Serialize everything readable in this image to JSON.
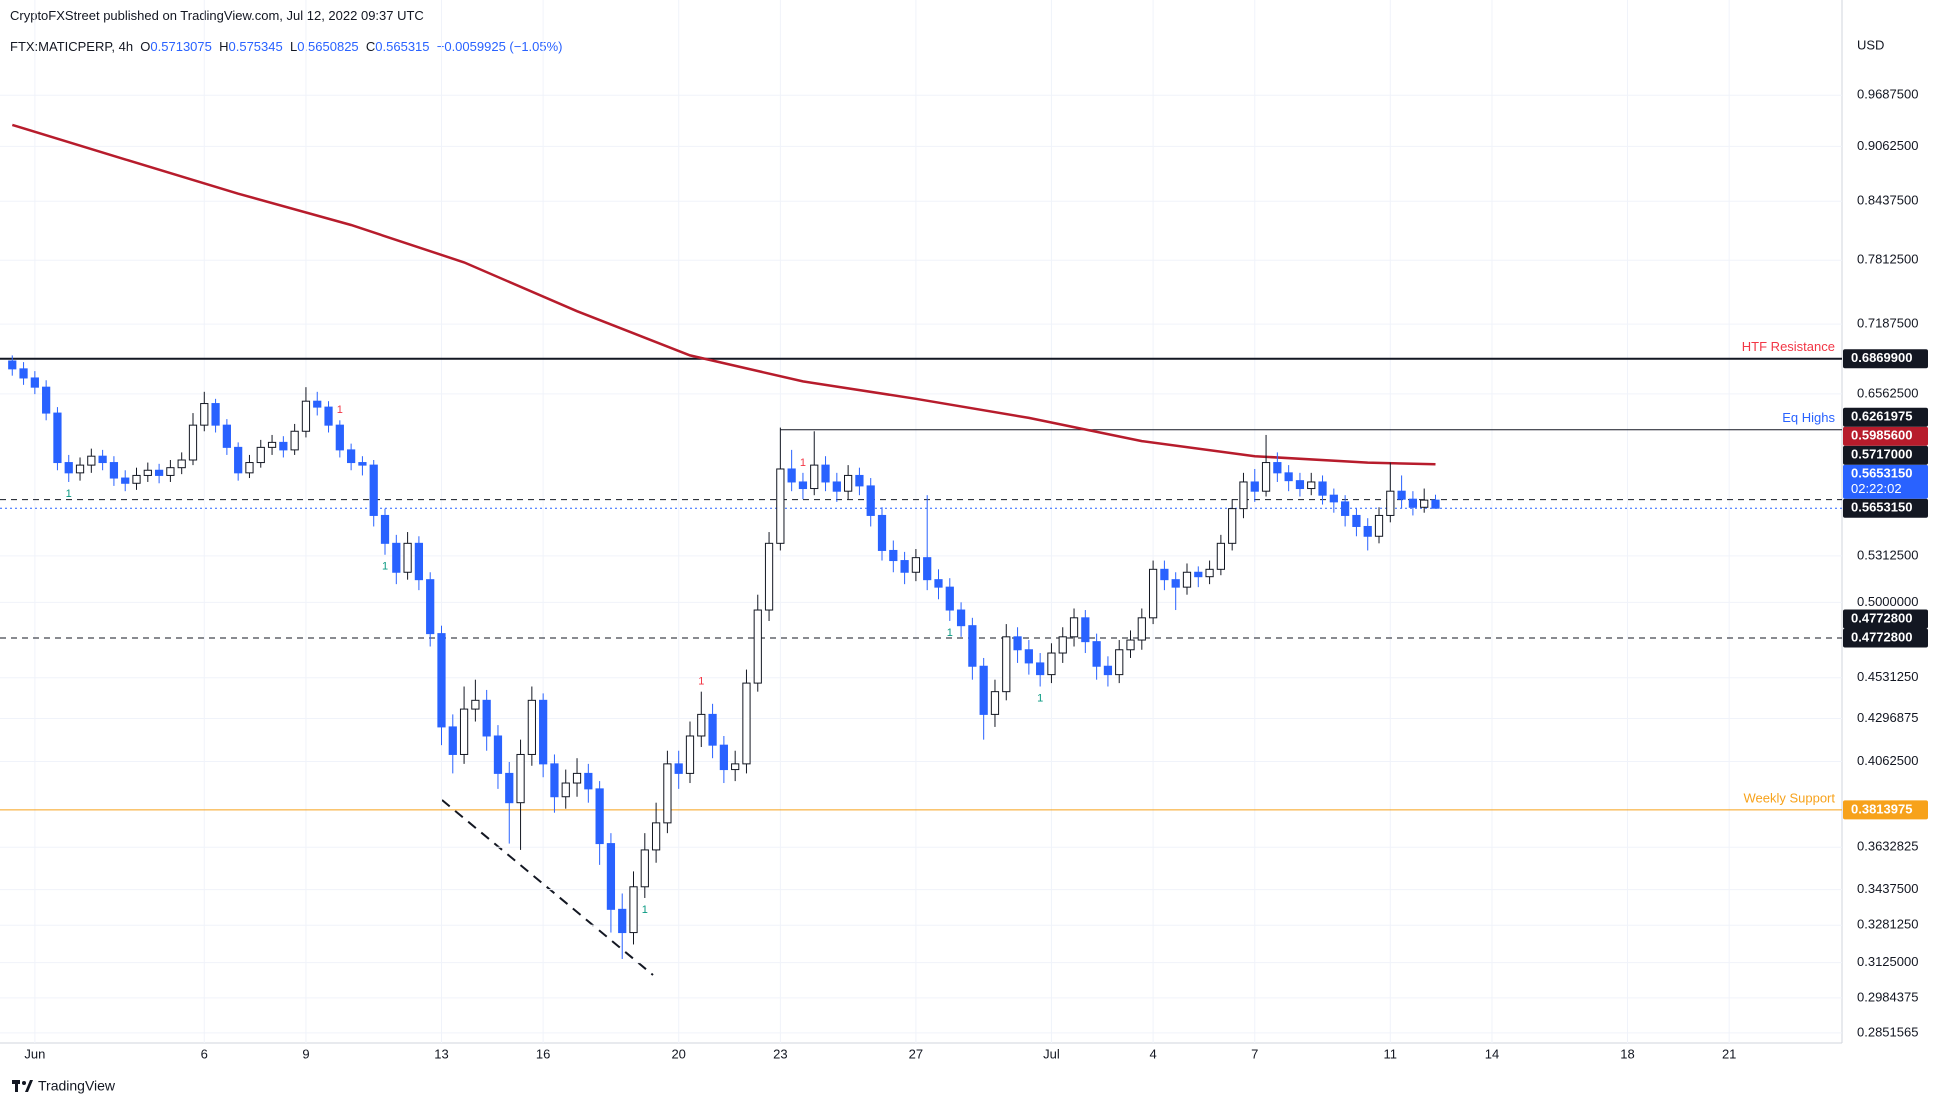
{
  "header": {
    "published": "CryptoFXStreet published on TradingView.com, Jul 12, 2022 09:37 UTC",
    "symbol": "FTX:MATICPERP, 4h",
    "o": "O",
    "h": "H",
    "l": "L",
    "c": "C",
    "change": "−0.0059925 (−1.05%)"
  },
  "footer": {
    "brand": "TradingView"
  },
  "chart_data": {
    "type": "candlestick",
    "currency": "USD",
    "log": true,
    "grid": true,
    "up_color": "#ffffff",
    "up_border": "#131722",
    "down_color": "#2962ff",
    "ylim": [
      0.2814,
      1.059
    ],
    "yticks": [
      {
        "value": 0.96875,
        "label": "0.9687500"
      },
      {
        "value": 0.90625,
        "label": "0.9062500"
      },
      {
        "value": 0.84375,
        "label": "0.8437500"
      },
      {
        "value": 0.78125,
        "label": "0.7812500"
      },
      {
        "value": 0.71875,
        "label": "0.7187500"
      },
      {
        "value": 0.65625,
        "label": "0.6562500"
      },
      {
        "value": 0.53125,
        "label": "0.5312500"
      },
      {
        "value": 0.5,
        "label": "0.5000000"
      },
      {
        "value": 0.453125,
        "label": "0.4531250"
      },
      {
        "value": 0.4296875,
        "label": "0.4296875"
      },
      {
        "value": 0.40625,
        "label": "0.4062500"
      },
      {
        "value": 0.3632825,
        "label": "0.3632825"
      },
      {
        "value": 0.34375,
        "label": "0.3437500"
      },
      {
        "value": 0.328125,
        "label": "0.3281250"
      },
      {
        "value": 0.3125,
        "label": "0.3125000"
      },
      {
        "value": 0.2984375,
        "label": "0.2984375"
      },
      {
        "value": 0.2851565,
        "label": "0.2851565"
      }
    ],
    "xlim": [
      -0.2,
      161.9
    ],
    "xticks": [
      {
        "value": 2,
        "label": "Jun"
      },
      {
        "value": 17,
        "label": "6"
      },
      {
        "value": 26,
        "label": "9"
      },
      {
        "value": 38,
        "label": "13"
      },
      {
        "value": 47,
        "label": "16"
      },
      {
        "value": 59,
        "label": "20"
      },
      {
        "value": 68,
        "label": "23"
      },
      {
        "value": 80,
        "label": "27"
      },
      {
        "value": 92,
        "label": "Jul"
      },
      {
        "value": 101,
        "label": "4"
      },
      {
        "value": 110,
        "label": "7"
      },
      {
        "value": 122,
        "label": "11"
      },
      {
        "value": 131,
        "label": "14"
      },
      {
        "value": 143,
        "label": "18"
      },
      {
        "value": 152,
        "label": "21"
      }
    ],
    "open": [
      0.685,
      0.678,
      0.67,
      0.662,
      0.64,
      0.6,
      0.592,
      0.598,
      0.605,
      0.6,
      0.588,
      0.584,
      0.59,
      0.594,
      0.59,
      0.596,
      0.602,
      0.63,
      0.648,
      0.63,
      0.612,
      0.592,
      0.6,
      0.612,
      0.616,
      0.61,
      0.625,
      0.65,
      0.645,
      0.63,
      0.61,
      0.6,
      0.598,
      0.56,
      0.54,
      0.52,
      0.54,
      0.515,
      0.48,
      0.425,
      0.41,
      0.435,
      0.44,
      0.42,
      0.4,
      0.385,
      0.41,
      0.44,
      0.405,
      0.388,
      0.395,
      0.4,
      0.392,
      0.365,
      0.335,
      0.325,
      0.345,
      0.362,
      0.375,
      0.405,
      0.4,
      0.42,
      0.432,
      0.415,
      0.402,
      0.405,
      0.45,
      0.495,
      0.54,
      0.595,
      0.585,
      0.58,
      0.598,
      0.585,
      0.578,
      0.59,
      0.582,
      0.56,
      0.535,
      0.528,
      0.52,
      0.53,
      0.515,
      0.51,
      0.495,
      0.485,
      0.46,
      0.432,
      0.445,
      0.478,
      0.47,
      0.462,
      0.455,
      0.468,
      0.478,
      0.49,
      0.475,
      0.46,
      0.455,
      0.47,
      0.476,
      0.49,
      0.522,
      0.515,
      0.51,
      0.52,
      0.517,
      0.522,
      0.54,
      0.565,
      0.585,
      0.578,
      0.6,
      0.592,
      0.586,
      0.58,
      0.585,
      0.575,
      0.57,
      0.56,
      0.552,
      0.545,
      0.56,
      0.578,
      0.572,
      0.566,
      0.5713075
    ],
    "high": [
      0.69,
      0.684,
      0.676,
      0.668,
      0.645,
      0.606,
      0.604,
      0.611,
      0.61,
      0.605,
      0.594,
      0.596,
      0.6,
      0.599,
      0.602,
      0.608,
      0.64,
      0.658,
      0.652,
      0.635,
      0.616,
      0.606,
      0.618,
      0.622,
      0.621,
      0.631,
      0.662,
      0.658,
      0.65,
      0.634,
      0.615,
      0.605,
      0.602,
      0.565,
      0.546,
      0.548,
      0.545,
      0.52,
      0.485,
      0.432,
      0.448,
      0.452,
      0.446,
      0.426,
      0.406,
      0.418,
      0.448,
      0.444,
      0.41,
      0.402,
      0.408,
      0.405,
      0.396,
      0.37,
      0.342,
      0.352,
      0.37,
      0.385,
      0.412,
      0.412,
      0.428,
      0.445,
      0.438,
      0.42,
      0.412,
      0.458,
      0.505,
      0.548,
      0.628,
      0.61,
      0.592,
      0.625,
      0.605,
      0.592,
      0.598,
      0.596,
      0.588,
      0.566,
      0.542,
      0.534,
      0.536,
      0.575,
      0.522,
      0.516,
      0.5,
      0.49,
      0.465,
      0.452,
      0.486,
      0.484,
      0.476,
      0.468,
      0.474,
      0.484,
      0.496,
      0.495,
      0.48,
      0.466,
      0.476,
      0.482,
      0.496,
      0.528,
      0.528,
      0.52,
      0.526,
      0.524,
      0.528,
      0.546,
      0.572,
      0.592,
      0.595,
      0.622,
      0.608,
      0.598,
      0.592,
      0.592,
      0.59,
      0.58,
      0.575,
      0.565,
      0.558,
      0.566,
      0.6,
      0.59,
      0.578,
      0.58,
      0.575345
    ],
    "low": [
      0.672,
      0.664,
      0.656,
      0.634,
      0.594,
      0.585,
      0.586,
      0.592,
      0.594,
      0.582,
      0.578,
      0.579,
      0.585,
      0.584,
      0.585,
      0.591,
      0.598,
      0.625,
      0.624,
      0.606,
      0.586,
      0.588,
      0.596,
      0.606,
      0.604,
      0.606,
      0.62,
      0.638,
      0.624,
      0.604,
      0.594,
      0.59,
      0.552,
      0.532,
      0.512,
      0.515,
      0.508,
      0.472,
      0.415,
      0.4,
      0.405,
      0.428,
      0.412,
      0.392,
      0.365,
      0.362,
      0.404,
      0.398,
      0.38,
      0.382,
      0.388,
      0.385,
      0.355,
      0.325,
      0.314,
      0.32,
      0.34,
      0.356,
      0.37,
      0.392,
      0.395,
      0.414,
      0.408,
      0.395,
      0.396,
      0.4,
      0.445,
      0.488,
      0.535,
      0.578,
      0.572,
      0.575,
      0.578,
      0.57,
      0.572,
      0.575,
      0.552,
      0.528,
      0.52,
      0.512,
      0.514,
      0.508,
      0.502,
      0.488,
      0.478,
      0.452,
      0.418,
      0.425,
      0.44,
      0.462,
      0.455,
      0.448,
      0.45,
      0.462,
      0.472,
      0.468,
      0.452,
      0.448,
      0.45,
      0.465,
      0.47,
      0.486,
      0.508,
      0.495,
      0.505,
      0.51,
      0.512,
      0.518,
      0.535,
      0.558,
      0.57,
      0.574,
      0.585,
      0.578,
      0.574,
      0.575,
      0.568,
      0.562,
      0.552,
      0.545,
      0.535,
      0.54,
      0.555,
      0.565,
      0.56,
      0.562,
      0.5650825
    ],
    "close": [
      0.678,
      0.67,
      0.662,
      0.64,
      0.6,
      0.592,
      0.598,
      0.605,
      0.6,
      0.588,
      0.584,
      0.59,
      0.594,
      0.59,
      0.596,
      0.602,
      0.63,
      0.648,
      0.63,
      0.612,
      0.592,
      0.6,
      0.612,
      0.616,
      0.61,
      0.625,
      0.65,
      0.645,
      0.63,
      0.61,
      0.6,
      0.598,
      0.56,
      0.54,
      0.52,
      0.54,
      0.515,
      0.48,
      0.425,
      0.41,
      0.435,
      0.44,
      0.42,
      0.4,
      0.385,
      0.41,
      0.44,
      0.405,
      0.388,
      0.395,
      0.4,
      0.392,
      0.365,
      0.335,
      0.325,
      0.345,
      0.362,
      0.375,
      0.405,
      0.4,
      0.42,
      0.432,
      0.415,
      0.402,
      0.405,
      0.45,
      0.495,
      0.54,
      0.595,
      0.585,
      0.58,
      0.598,
      0.585,
      0.578,
      0.59,
      0.582,
      0.56,
      0.535,
      0.528,
      0.52,
      0.53,
      0.515,
      0.51,
      0.495,
      0.485,
      0.46,
      0.432,
      0.445,
      0.478,
      0.47,
      0.462,
      0.455,
      0.468,
      0.478,
      0.49,
      0.475,
      0.46,
      0.455,
      0.47,
      0.476,
      0.49,
      0.522,
      0.515,
      0.51,
      0.52,
      0.517,
      0.522,
      0.54,
      0.565,
      0.585,
      0.578,
      0.6,
      0.592,
      0.586,
      0.58,
      0.585,
      0.575,
      0.57,
      0.56,
      0.552,
      0.545,
      0.56,
      0.578,
      0.572,
      0.566,
      0.5713075,
      0.565315
    ],
    "moving_average": {
      "color": "#b71c2c",
      "x": [
        0,
        10,
        20,
        30,
        40,
        50,
        60,
        70,
        80,
        90,
        100,
        110,
        120,
        126
      ],
      "values": [
        0.932,
        0.891,
        0.852,
        0.818,
        0.779,
        0.731,
        0.69,
        0.667,
        0.652,
        0.636,
        0.617,
        0.605,
        0.6,
        0.5986
      ]
    },
    "levels": [
      {
        "value": 0.68699,
        "color": "#131722",
        "style": "solid",
        "width": 2,
        "label": "HTF Resistance",
        "label_color": "#f23645"
      },
      {
        "value": 0.6261975,
        "color": "#131722",
        "style": "solid",
        "width": 1,
        "start": 68,
        "label": "Eq Highs",
        "label_color": "#2962ff"
      },
      {
        "value": 0.5717,
        "color": "#131722",
        "style": "dashed",
        "width": 1
      },
      {
        "value": 0.565315,
        "color": "#2962ff",
        "style": "dotted",
        "width": 1
      },
      {
        "value": 0.47728,
        "color": "#131722",
        "style": "dashed",
        "width": 1
      },
      {
        "value": 0.3813975,
        "color": "#f7a21b",
        "style": "solid",
        "width": 1,
        "label": "Weekly Support",
        "label_color": "#f7a21b"
      }
    ],
    "price_labels": [
      {
        "value": 0.3813975,
        "label": "0.3813975",
        "color": "#f7a21b"
      },
      {
        "value": 0.47728,
        "label": "0.4772800",
        "color": "#131722"
      },
      {
        "value": 0.47728,
        "label": "0.4772800",
        "color": "#131722"
      },
      {
        "value": 0.565315,
        "label": "0.5653150",
        "color": "#131722"
      },
      {
        "value": 0.565315,
        "label": "0.5653150",
        "color": "#2962ff",
        "countdown": "02:22:02"
      },
      {
        "value": 0.5717,
        "label": "0.5717000",
        "color": "#131722"
      },
      {
        "value": 0.59856,
        "label": "0.5985600",
        "color": "#b71c2c"
      },
      {
        "value": 0.6261975,
        "label": "0.6261975",
        "color": "#131722"
      },
      {
        "value": 0.68699,
        "label": "0.6869900",
        "color": "#131722"
      }
    ],
    "markers": [
      {
        "candle": 5,
        "label": "1",
        "color": "#089981",
        "position": "below"
      },
      {
        "candle": 29,
        "label": "1",
        "color": "#f23645",
        "position": "above"
      },
      {
        "candle": 33,
        "label": "1",
        "color": "#089981",
        "position": "below"
      },
      {
        "candle": 56,
        "label": "1",
        "color": "#089981",
        "position": "below"
      },
      {
        "candle": 61,
        "label": "1",
        "color": "#f23645",
        "position": "above"
      },
      {
        "candle": 70,
        "label": "1",
        "color": "#f23645",
        "position": "above"
      },
      {
        "candle": 83,
        "label": "1",
        "color": "#089981",
        "position": "below"
      },
      {
        "candle": 91,
        "label": "1",
        "color": "#089981",
        "position": "below"
      }
    ]
  }
}
